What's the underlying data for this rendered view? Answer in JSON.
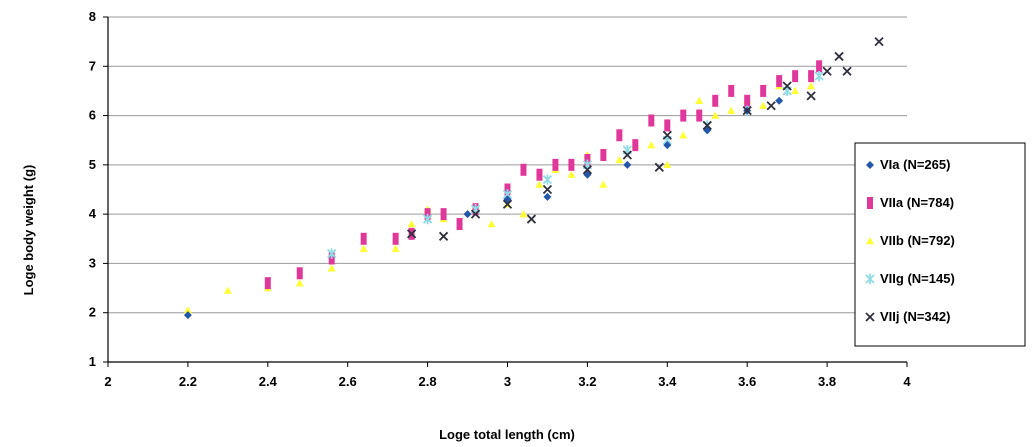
{
  "chart_data": {
    "type": "scatter",
    "title": "",
    "xlabel": "Loge total length (cm)",
    "ylabel": "Loge body weight (g)",
    "xlim": [
      2,
      4
    ],
    "ylim": [
      1,
      8
    ],
    "x_ticks": [
      "2",
      "2.2",
      "2.4",
      "2.6",
      "2.8",
      "3",
      "3.2",
      "3.4",
      "3.6",
      "3.8",
      "4"
    ],
    "y_ticks": [
      "1",
      "2",
      "3",
      "4",
      "5",
      "6",
      "7",
      "8"
    ],
    "grid": "horizontal",
    "legend_position": "right",
    "series": [
      {
        "name": "VIa (N=265)",
        "marker": "diamond",
        "color": "#2457a8",
        "points": [
          [
            2.2,
            1.95
          ],
          [
            2.9,
            4.0
          ],
          [
            3.0,
            4.3
          ],
          [
            3.1,
            4.35
          ],
          [
            3.2,
            4.8
          ],
          [
            3.3,
            5.0
          ],
          [
            3.4,
            5.4
          ],
          [
            3.5,
            5.7
          ],
          [
            3.6,
            6.1
          ],
          [
            3.68,
            6.3
          ]
        ]
      },
      {
        "name": "VIIa (N=784)",
        "marker": "square",
        "color": "#e0389a",
        "points": [
          [
            2.4,
            2.6
          ],
          [
            2.48,
            2.8
          ],
          [
            2.56,
            3.1
          ],
          [
            2.64,
            3.5
          ],
          [
            2.72,
            3.5
          ],
          [
            2.76,
            3.6
          ],
          [
            2.8,
            4.0
          ],
          [
            2.84,
            4.0
          ],
          [
            2.88,
            3.8
          ],
          [
            2.92,
            4.1
          ],
          [
            3.0,
            4.5
          ],
          [
            3.04,
            4.9
          ],
          [
            3.08,
            4.8
          ],
          [
            3.12,
            5.0
          ],
          [
            3.16,
            5.0
          ],
          [
            3.2,
            5.1
          ],
          [
            3.24,
            5.2
          ],
          [
            3.28,
            5.6
          ],
          [
            3.32,
            5.4
          ],
          [
            3.36,
            5.9
          ],
          [
            3.4,
            5.8
          ],
          [
            3.44,
            6.0
          ],
          [
            3.48,
            6.0
          ],
          [
            3.52,
            6.3
          ],
          [
            3.56,
            6.5
          ],
          [
            3.6,
            6.3
          ],
          [
            3.64,
            6.5
          ],
          [
            3.68,
            6.7
          ],
          [
            3.72,
            6.8
          ],
          [
            3.76,
            6.8
          ],
          [
            3.78,
            7.0
          ]
        ]
      },
      {
        "name": "VIIb (N=792)",
        "marker": "triangle",
        "color": "#ffff33",
        "points": [
          [
            2.2,
            2.05
          ],
          [
            2.3,
            2.45
          ],
          [
            2.4,
            2.5
          ],
          [
            2.48,
            2.6
          ],
          [
            2.56,
            2.9
          ],
          [
            2.64,
            3.3
          ],
          [
            2.72,
            3.3
          ],
          [
            2.76,
            3.8
          ],
          [
            2.8,
            4.1
          ],
          [
            2.84,
            3.9
          ],
          [
            2.96,
            3.8
          ],
          [
            3.0,
            4.2
          ],
          [
            3.04,
            4.0
          ],
          [
            3.08,
            4.6
          ],
          [
            3.12,
            4.9
          ],
          [
            3.16,
            4.8
          ],
          [
            3.2,
            5.2
          ],
          [
            3.24,
            4.6
          ],
          [
            3.28,
            5.1
          ],
          [
            3.32,
            5.4
          ],
          [
            3.36,
            5.4
          ],
          [
            3.4,
            5.0
          ],
          [
            3.44,
            5.6
          ],
          [
            3.48,
            6.3
          ],
          [
            3.52,
            6.0
          ],
          [
            3.56,
            6.1
          ],
          [
            3.6,
            6.3
          ],
          [
            3.64,
            6.2
          ],
          [
            3.68,
            6.6
          ],
          [
            3.72,
            6.5
          ],
          [
            3.76,
            6.6
          ]
        ]
      },
      {
        "name": "VIIg (N=145)",
        "marker": "star",
        "color": "#8fdbe6",
        "points": [
          [
            2.56,
            3.2
          ],
          [
            2.8,
            3.9
          ],
          [
            2.92,
            4.1
          ],
          [
            3.0,
            4.4
          ],
          [
            3.1,
            4.7
          ],
          [
            3.2,
            5.0
          ],
          [
            3.3,
            5.3
          ],
          [
            3.4,
            5.5
          ],
          [
            3.5,
            5.8
          ],
          [
            3.6,
            6.1
          ],
          [
            3.7,
            6.5
          ],
          [
            3.78,
            6.8
          ]
        ]
      },
      {
        "name": "VIIj (N=342)",
        "marker": "x",
        "color": "#303040",
        "points": [
          [
            2.76,
            3.6
          ],
          [
            2.84,
            3.55
          ],
          [
            2.92,
            4.0
          ],
          [
            3.0,
            4.2
          ],
          [
            3.06,
            3.9
          ],
          [
            3.1,
            4.5
          ],
          [
            3.2,
            4.9
          ],
          [
            3.3,
            5.2
          ],
          [
            3.38,
            4.95
          ],
          [
            3.4,
            5.6
          ],
          [
            3.5,
            5.8
          ],
          [
            3.6,
            6.1
          ],
          [
            3.66,
            6.2
          ],
          [
            3.7,
            6.6
          ],
          [
            3.76,
            6.4
          ],
          [
            3.8,
            6.9
          ],
          [
            3.83,
            7.2
          ],
          [
            3.85,
            6.9
          ],
          [
            3.93,
            7.5
          ]
        ]
      }
    ]
  }
}
